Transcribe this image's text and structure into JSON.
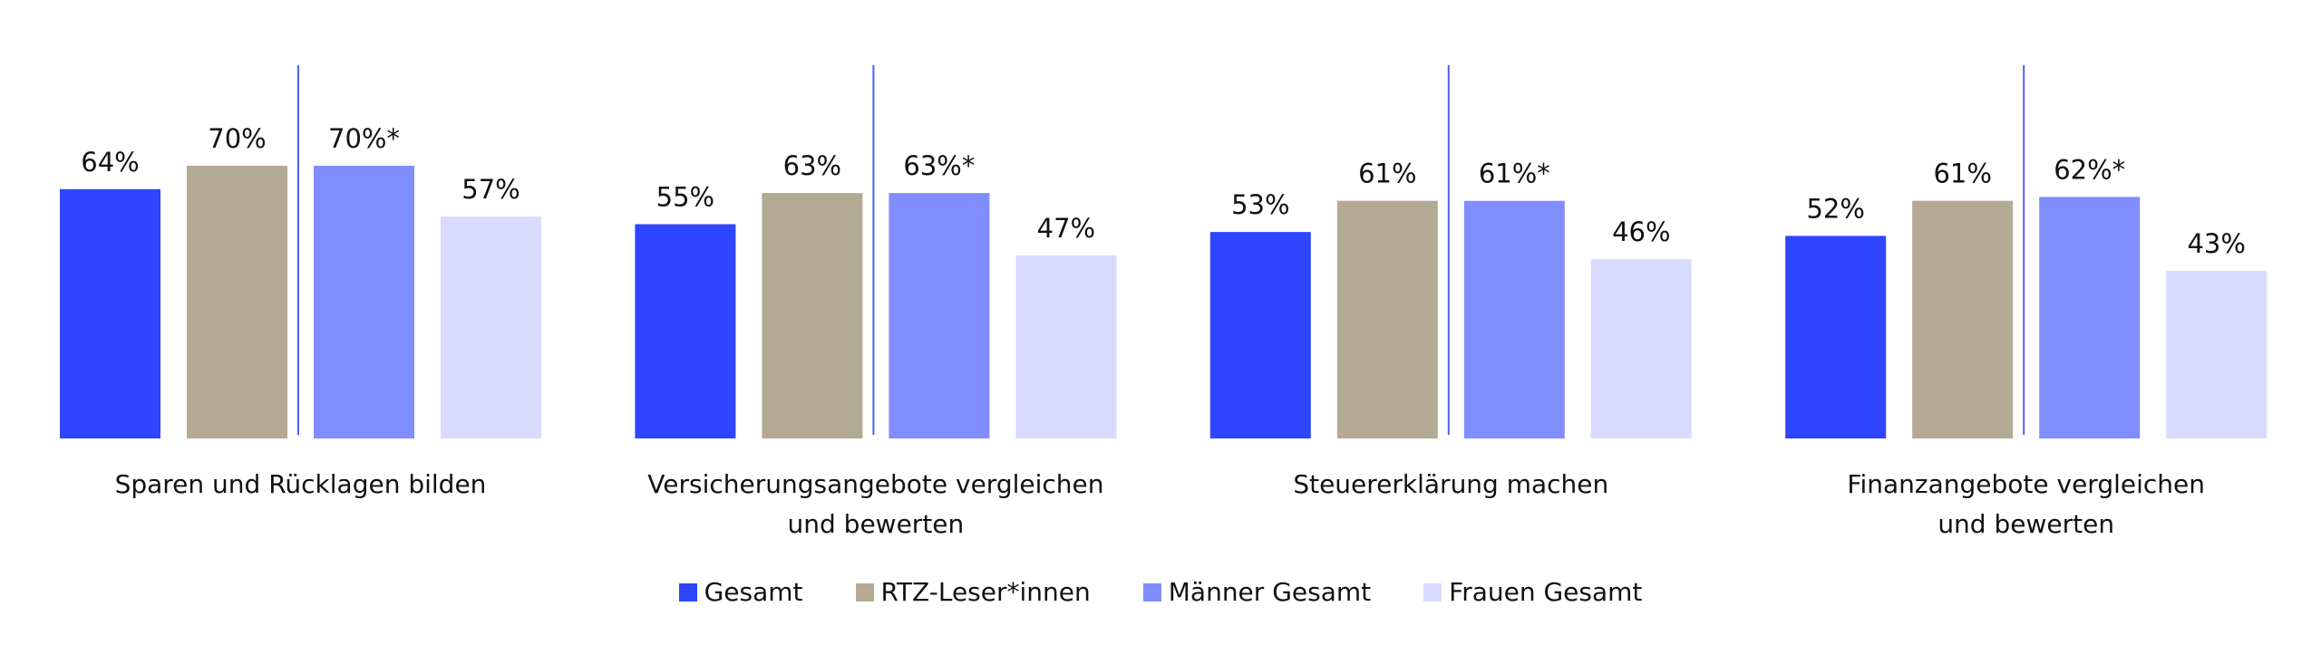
{
  "chart_data": {
    "type": "bar",
    "title": "",
    "xlabel": "",
    "ylabel": "",
    "ylim": [
      0,
      100
    ],
    "grid": false,
    "legend_position": "bottom",
    "categories": [
      [
        "Sparen und Rücklagen bilden"
      ],
      [
        "Versicherungsangebote vergleichen",
        "und bewerten"
      ],
      [
        "Steuererklärung machen"
      ],
      [
        "Finanzangebote vergleichen",
        "und bewerten"
      ]
    ],
    "series": [
      {
        "name": "Gesamt",
        "color": "#2e46ff",
        "values": [
          64,
          55,
          53,
          52
        ],
        "labels": [
          "64%",
          "55%",
          "53%",
          "52%"
        ]
      },
      {
        "name": "RTZ-Leser*innen",
        "color": "#b4a993",
        "values": [
          70,
          63,
          61,
          61
        ],
        "labels": [
          "70%",
          "63%",
          "61%",
          "61%"
        ]
      },
      {
        "name": "Männer Gesamt",
        "color": "#808dff",
        "values": [
          70,
          63,
          61,
          62
        ],
        "labels": [
          "70%*",
          "63%*",
          "61%*",
          "62%*"
        ]
      },
      {
        "name": "Frauen Gesamt",
        "color": "#d7dbfd",
        "values": [
          57,
          47,
          46,
          43
        ],
        "labels": [
          "57%",
          "47%",
          "46%",
          "43%"
        ]
      }
    ],
    "divider_color": "#4a62f0"
  }
}
